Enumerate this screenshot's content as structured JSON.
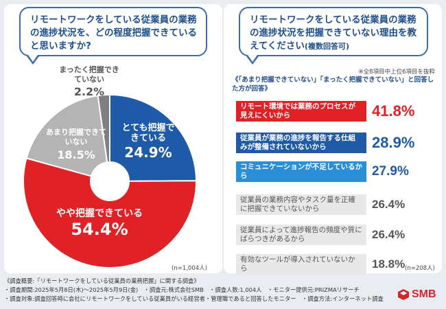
{
  "left": {
    "title": "リモートワークをしている従業員の業務の進捗状況を、どの程度把握できていると思いますか?",
    "n_note": "(n=1,004人)"
  },
  "right": {
    "title_main": "リモートワークをしている従業員の業務の進捗状況を把握できていない理由を教えてください",
    "title_small": "(複数回答可)",
    "note": "※全8項目中上位6項目を抜粋",
    "subtitle": "《「あまり把握できていない」「まったく把握できていない」と回答した方が回答》",
    "n_note": "(n=208人)"
  },
  "chart_data": [
    {
      "type": "pie",
      "title": "リモートワークをしている従業員の業務の進捗状況を、どの程度把握できていると思いますか?",
      "slices": [
        {
          "label": "とても把握できている",
          "value": 24.9,
          "display": "24.9%",
          "color": "#1e5aa8"
        },
        {
          "label": "やや把握できている",
          "value": 54.4,
          "display": "54.4%",
          "color": "#e02227"
        },
        {
          "label": "あまり把握できていない",
          "value": 18.5,
          "display": "18.5%",
          "color": "#b4b4b4"
        },
        {
          "label": "まったく把握できていない",
          "value": 2.2,
          "display": "2.2%",
          "color": "#7f7f7f"
        }
      ]
    },
    {
      "type": "bar",
      "title": "リモートワークをしている従業員の業務の進捗状況を把握できていない理由を教えてください(複数回答可)",
      "categories": [
        "リモート環境では業務のプロセスが見えにくいから",
        "従業員が業務の進捗を報告する仕組みが整備されていないから",
        "コミュニケーションが不足しているから",
        "従業員の業務内容やタスク量を正確に把握できていないから",
        "従業員によって進捗報告の頻度や質にばらつきがあるから",
        "有効なツールが導入されていないから"
      ],
      "values": [
        41.8,
        28.9,
        27.9,
        26.4,
        26.4,
        18.8
      ],
      "display": [
        "41.8%",
        "28.9%",
        "27.9%",
        "26.4%",
        "26.4%",
        "18.8%"
      ]
    }
  ],
  "footer": {
    "line1": "《調査概要:「リモートワークをしている従業員の業務把握」に関する調査》",
    "line2": "・調査期間:2025年5月8日(木)〜2025年5月9日(金)　・調査元:株式会社SMB　・調査人数:1,004人　・モニター提供元:PRIZMAリサーチ",
    "line3": "・調査対象:調査回答時に会社にリモートワークをしている従業員がいる経営者・管理職であると回答したモニター　・調査方法:インターネット調査"
  },
  "logo": "SMB",
  "colors": {
    "accent": "#1f4e8c",
    "red": "#e02227",
    "blue": "#1e5aa8",
    "gray": "#b4b4b4",
    "dark_gray": "#7f7f7f"
  }
}
